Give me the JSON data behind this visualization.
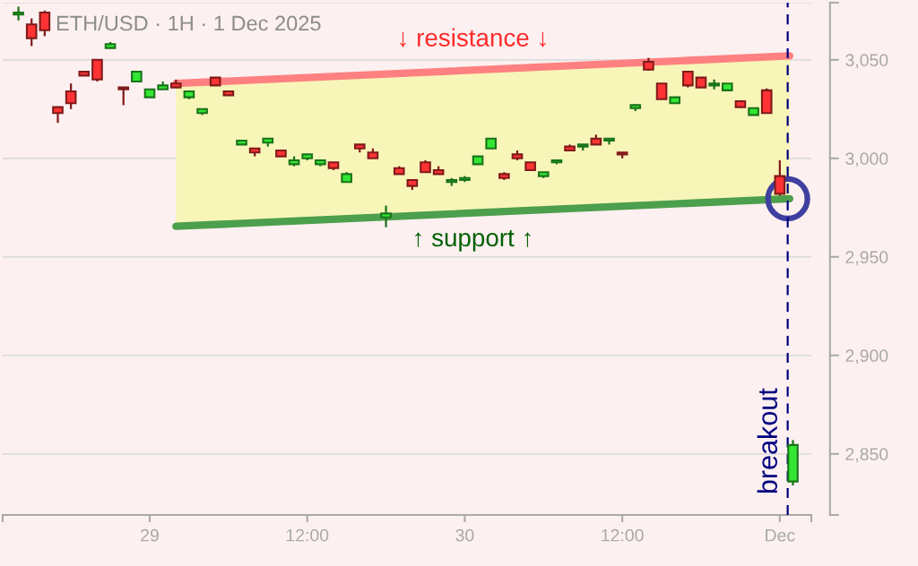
{
  "chart_data": {
    "type": "candlestick",
    "title": "ETH/USD · 1H · 1 Dec 2025",
    "x": [
      "2025-11-28T14:00",
      "2025-11-28T15:00",
      "2025-11-28T16:00",
      "2025-11-28T17:00",
      "2025-11-28T18:00",
      "2025-11-28T19:00",
      "2025-11-28T20:00",
      "2025-11-28T21:00",
      "2025-11-28T22:00",
      "2025-11-28T23:00",
      "2025-11-29T00:00",
      "2025-11-29T01:00",
      "2025-11-29T02:00",
      "2025-11-29T03:00",
      "2025-11-29T04:00",
      "2025-11-29T05:00",
      "2025-11-29T06:00",
      "2025-11-29T07:00",
      "2025-11-29T08:00",
      "2025-11-29T09:00",
      "2025-11-29T10:00",
      "2025-11-29T11:00",
      "2025-11-29T12:00",
      "2025-11-29T13:00",
      "2025-11-29T14:00",
      "2025-11-29T15:00",
      "2025-11-29T16:00",
      "2025-11-29T17:00",
      "2025-11-29T18:00",
      "2025-11-29T19:00",
      "2025-11-29T20:00",
      "2025-11-29T21:00",
      "2025-11-29T22:00",
      "2025-11-29T23:00",
      "2025-11-30T00:00",
      "2025-11-30T01:00",
      "2025-11-30T02:00",
      "2025-11-30T03:00",
      "2025-11-30T04:00",
      "2025-11-30T05:00",
      "2025-11-30T06:00",
      "2025-11-30T07:00",
      "2025-11-30T08:00",
      "2025-11-30T09:00",
      "2025-11-30T10:00",
      "2025-11-30T11:00",
      "2025-11-30T12:00",
      "2025-11-30T13:00",
      "2025-11-30T14:00",
      "2025-11-30T15:00",
      "2025-11-30T16:00",
      "2025-11-30T17:00",
      "2025-11-30T18:00",
      "2025-11-30T19:00",
      "2025-11-30T20:00",
      "2025-11-30T21:00",
      "2025-11-30T22:00",
      "2025-11-30T23:00",
      "2025-12-01T00:00",
      "2025-12-01T01:00"
    ],
    "ohlc": [
      [
        3073,
        3077,
        3070,
        3074
      ],
      [
        3068,
        3071,
        3057,
        3061
      ],
      [
        3074,
        3075,
        3062,
        3065
      ],
      [
        3026,
        3026,
        3018,
        3023
      ],
      [
        3034,
        3038,
        3025,
        3028
      ],
      [
        3044,
        3044,
        3042,
        3042
      ],
      [
        3050,
        3050,
        3039,
        3040
      ],
      [
        3056,
        3059,
        3056,
        3058
      ],
      [
        3036,
        3036,
        3027,
        3035
      ],
      [
        3039,
        3044,
        3039,
        3044
      ],
      [
        3031,
        3035,
        3031,
        3035
      ],
      [
        3035,
        3039,
        3035,
        3037
      ],
      [
        3038,
        3040,
        3036,
        3036
      ],
      [
        3031,
        3034,
        3030,
        3034
      ],
      [
        3023,
        3025,
        3022,
        3025
      ],
      [
        3041,
        3041,
        3037,
        3037
      ],
      [
        3034,
        3034,
        3032,
        3032
      ],
      [
        3007,
        3009,
        3007,
        3009
      ],
      [
        3005,
        3005,
        3001,
        3003
      ],
      [
        3008,
        3010,
        3006,
        3010
      ],
      [
        3004,
        3004,
        3001,
        3001
      ],
      [
        2997,
        3001,
        2996,
        2999
      ],
      [
        3000,
        3002,
        2999,
        3002
      ],
      [
        2997,
        2999,
        2996,
        2999
      ],
      [
        2998,
        2998,
        2994,
        2995
      ],
      [
        2988,
        2993,
        2988,
        2992
      ],
      [
        3007,
        3007,
        3003,
        3005
      ],
      [
        3003,
        3005,
        3000,
        3000
      ],
      [
        2970,
        2976,
        2965,
        2972
      ],
      [
        2995,
        2996,
        2992,
        2992
      ],
      [
        2989,
        2989,
        2984,
        2986
      ],
      [
        2998,
        2999,
        2993,
        2993
      ],
      [
        2994,
        2996,
        2992,
        2992
      ],
      [
        2988,
        2990,
        2986,
        2989
      ],
      [
        2989,
        2991,
        2988,
        2990
      ],
      [
        2997,
        3001,
        2997,
        3001
      ],
      [
        3005,
        3010,
        3005,
        3010
      ],
      [
        2992,
        2993,
        2989,
        2990
      ],
      [
        3002,
        3004,
        2999,
        3000
      ],
      [
        2998,
        2998,
        2994,
        2994
      ],
      [
        2991,
        2993,
        2990,
        2993
      ],
      [
        2998,
        2999,
        2997,
        2999
      ],
      [
        3006,
        3007,
        3004,
        3004
      ],
      [
        3006,
        3007,
        3004,
        3007
      ],
      [
        3010,
        3012,
        3007,
        3007
      ],
      [
        3009,
        3010,
        3007,
        3010
      ],
      [
        3003,
        3003,
        3000,
        3002
      ],
      [
        3025.5,
        3027.5,
        3024,
        3027
      ],
      [
        3049,
        3051,
        3044.5,
        3045
      ],
      [
        3038,
        3038,
        3030,
        3030
      ],
      [
        3028,
        3031,
        3028,
        3031
      ],
      [
        3044,
        3044,
        3036,
        3037
      ],
      [
        3041,
        3041,
        3036,
        3036
      ],
      [
        3037,
        3040,
        3035,
        3038
      ],
      [
        3034.5,
        3038,
        3034.5,
        3038
      ],
      [
        3029,
        3029,
        3026,
        3026
      ],
      [
        3022,
        3025.5,
        3022,
        3025.5
      ],
      [
        3034.5,
        3035.5,
        3023,
        3023
      ],
      [
        2991,
        2999,
        2981,
        2982
      ],
      [
        2836,
        2857,
        2834,
        2854.5
      ]
    ],
    "colors": [
      "#33e633",
      "#ff3333",
      "#ff3333",
      "#ff3333",
      "#ff3333",
      "#ff3333",
      "#ff3333",
      "#33e633",
      "#ff3333",
      "#33e633",
      "#33e633",
      "#33e633",
      "#ff3333",
      "#33e633",
      "#33e633",
      "#ff3333",
      "#ff3333",
      "#33e633",
      "#ff3333",
      "#33e633",
      "#ff3333",
      "#33e633",
      "#33e633",
      "#33e633",
      "#ff3333",
      "#33e633",
      "#ff3333",
      "#ff3333",
      "#33e633",
      "#ff3333",
      "#ff3333",
      "#ff3333",
      "#ff3333",
      "#33e633",
      "#33e633",
      "#33e633",
      "#33e633",
      "#ff3333",
      "#ff3333",
      "#ff3333",
      "#33e633",
      "#33e633",
      "#ff3333",
      "#33e633",
      "#ff3333",
      "#33e633",
      "#ff3333",
      "#33e633",
      "#ff3333",
      "#ff3333",
      "#33e633",
      "#ff3333",
      "#ff3333",
      "#33e633",
      "#33e633",
      "#ff3333",
      "#33e633",
      "#ff3333",
      "#ff3333",
      "#33e633"
    ],
    "series": [
      {
        "type": "line",
        "name": "↓ resistance ↓",
        "x": [
          "2025-11-29T02:00",
          "2025-12-01T00:45"
        ],
        "values": [
          3038,
          3052
        ],
        "lower": [
          2965.5,
          2979.5
        ],
        "upper": [
          3038,
          3052
        ],
        "color": "#ff8080"
      },
      {
        "type": "line",
        "name": "↑ support ↑",
        "x": [
          "2025-11-29T02:00",
          "2025-12-01T00:45"
        ],
        "values": [
          2965.5,
          2979.5
        ],
        "color": "#4c9f4c"
      },
      {
        "type": "scatter",
        "x": [
          "2025-12-01T00:36"
        ],
        "values": [
          2979.5
        ],
        "color": "#3f3f9f",
        "marker": "circle"
      }
    ],
    "ref_lines": [
      {
        "axis": "x",
        "value": "2025-12-01T00:36",
        "label": "breakout",
        "color": "#000080",
        "line_style": "dashed"
      }
    ],
    "xlim": [
      "2025-11-28T12:48",
      "2025-12-01T02:24"
    ],
    "xticks": [
      {
        "value": "2025-11-28T12:48",
        "label": null
      },
      {
        "value": "2025-11-29",
        "label": "29"
      },
      {
        "value": "2025-11-29T12:00",
        "label": "12:00"
      },
      {
        "value": "2025-11-30",
        "label": "30"
      },
      {
        "value": "2025-11-30T12:00",
        "label": "12:00"
      },
      {
        "value": "2025-12-01",
        "label": "Dec"
      },
      {
        "value": "2025-12-01T02:24",
        "label": null
      }
    ],
    "ylim": [
      2819,
      3079
    ],
    "yticks": [
      {
        "value": 2819,
        "label": null
      },
      {
        "value": 2850,
        "label": "2,850"
      },
      {
        "value": 2900,
        "label": "2,900"
      },
      {
        "value": 2950,
        "label": "2,950"
      },
      {
        "value": 3000,
        "label": "3,000"
      },
      {
        "value": 3050,
        "label": "3,050"
      },
      {
        "value": 3079,
        "label": null
      }
    ],
    "grid": "y"
  }
}
